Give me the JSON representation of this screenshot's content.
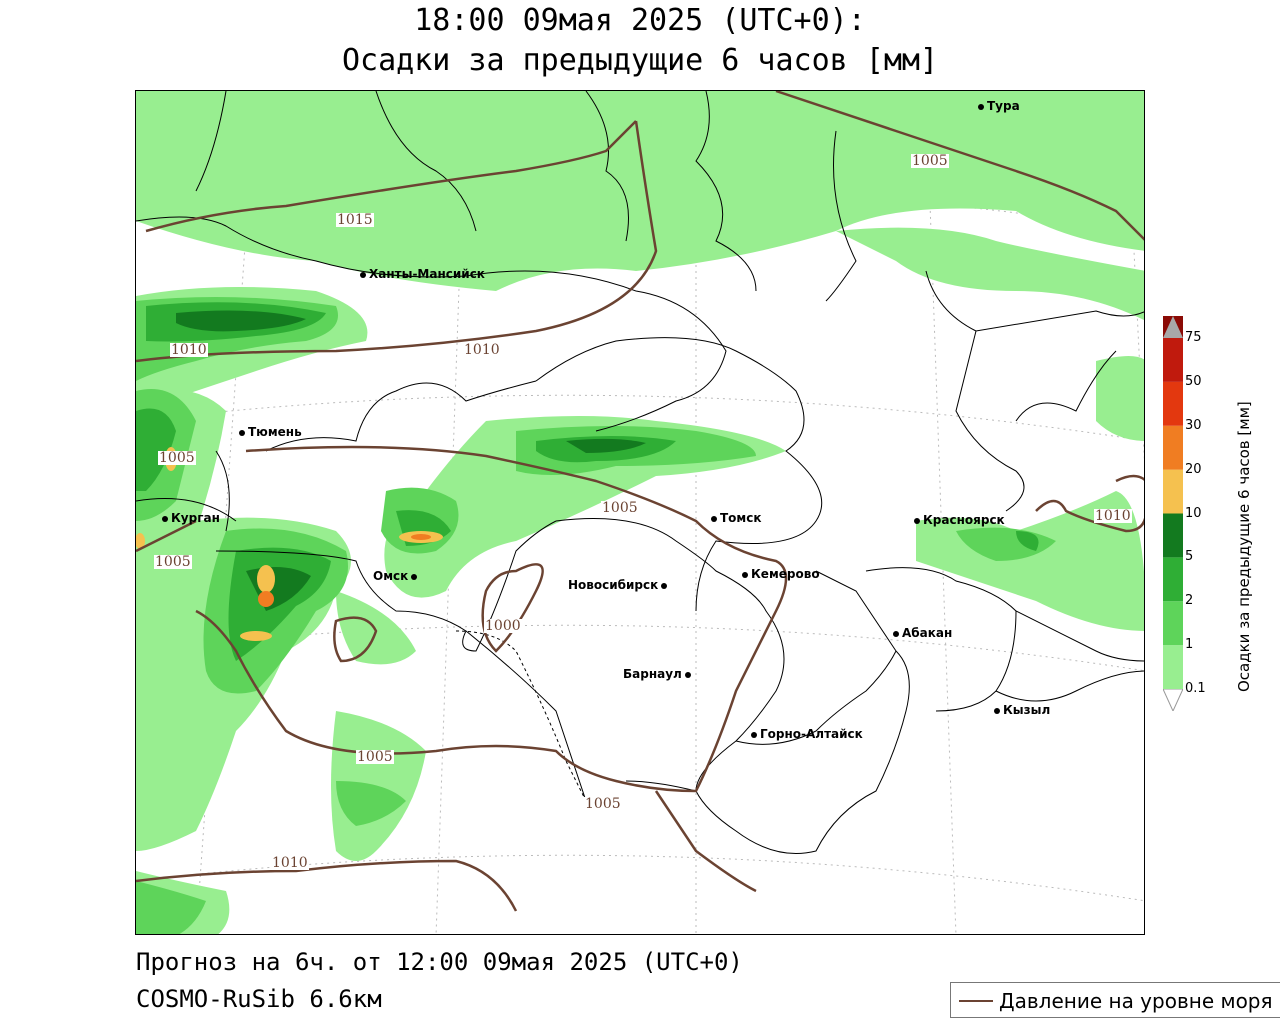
{
  "header": {
    "line1": "18:00 09мая 2025 (UTC+0):",
    "line2": "Осадки за предыдущие 6 часов [мм]"
  },
  "footer": {
    "forecast": "Прогноз на 6ч. от 12:00 09мая 2025 (UTC+0)",
    "model": "COSMO-RuSib 6.6км"
  },
  "legend": {
    "pressure_label": "Давление на уровне моря",
    "pressure_color": "#6b4332"
  },
  "colorbar": {
    "title": "Осадки за предыдущие 6 часов [мм]",
    "levels": [
      "0.1",
      "1",
      "2",
      "5",
      "10",
      "20",
      "30",
      "50",
      "75"
    ],
    "colors": [
      "#98ee90",
      "#5ed45a",
      "#2fae35",
      "#137a1f",
      "#f5c14f",
      "#f07d22",
      "#e3380f",
      "#c01a0d",
      "#8b0a05",
      "#a8a8a8"
    ]
  },
  "cities": [
    {
      "name": "Тура"
    },
    {
      "name": "Ханты-Мансийск"
    },
    {
      "name": "Тюмень"
    },
    {
      "name": "Курган"
    },
    {
      "name": "Омск"
    },
    {
      "name": "Новосибирск"
    },
    {
      "name": "Томск"
    },
    {
      "name": "Кемерово"
    },
    {
      "name": "Барнаул"
    },
    {
      "name": "Горно-Алтайск"
    },
    {
      "name": "Красноярск"
    },
    {
      "name": "Абакан"
    },
    {
      "name": "Кызыл"
    }
  ],
  "isobars": [
    "1015",
    "1010",
    "1010",
    "1005",
    "1005",
    "1005",
    "1000",
    "1005",
    "1005",
    "1010",
    "1005",
    "1010"
  ]
}
